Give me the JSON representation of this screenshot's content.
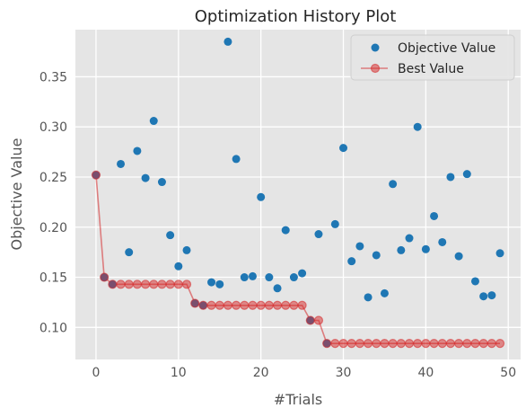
{
  "chart_data": {
    "type": "scatter",
    "title": "Optimization History Plot",
    "xlabel": "#Trials",
    "ylabel": "Objective Value",
    "xlim": [
      -2.5,
      51.5
    ],
    "ylim": [
      0.068,
      0.397
    ],
    "xticks": [
      0,
      10,
      20,
      30,
      40,
      50
    ],
    "yticks": [
      0.1,
      0.15,
      0.2,
      0.25,
      0.3,
      0.35
    ],
    "grid": true,
    "legend_position": "top-right",
    "colors": {
      "background": "#e5e5e5",
      "grid": "#ffffff",
      "objective": "#1f77b4",
      "best": "#d62728"
    },
    "series": [
      {
        "name": "Objective Value",
        "kind": "scatter",
        "x": [
          0,
          1,
          2,
          3,
          4,
          5,
          6,
          7,
          8,
          9,
          10,
          11,
          12,
          13,
          14,
          15,
          16,
          17,
          18,
          19,
          20,
          21,
          22,
          23,
          24,
          25,
          26,
          27,
          28,
          29,
          30,
          31,
          32,
          33,
          34,
          35,
          36,
          37,
          38,
          39,
          40,
          41,
          42,
          43,
          44,
          45,
          46,
          47,
          48,
          49
        ],
        "y": [
          0.252,
          0.15,
          0.143,
          0.263,
          0.175,
          0.276,
          0.249,
          0.306,
          0.245,
          0.192,
          0.161,
          0.177,
          0.124,
          0.122,
          0.145,
          0.143,
          0.385,
          0.268,
          0.15,
          0.151,
          0.23,
          0.15,
          0.139,
          0.197,
          0.15,
          0.154,
          0.107,
          0.193,
          0.084,
          0.203,
          0.279,
          0.166,
          0.181,
          0.13,
          0.172,
          0.134,
          0.243,
          0.177,
          0.189,
          0.3,
          0.178,
          0.211,
          0.185,
          0.25,
          0.171,
          0.253,
          0.146,
          0.131,
          0.132,
          0.174
        ]
      },
      {
        "name": "Best Value",
        "kind": "line-markers",
        "x": [
          0,
          1,
          2,
          3,
          4,
          5,
          6,
          7,
          8,
          9,
          10,
          11,
          12,
          13,
          14,
          15,
          16,
          17,
          18,
          19,
          20,
          21,
          22,
          23,
          24,
          25,
          26,
          27,
          28,
          29,
          30,
          31,
          32,
          33,
          34,
          35,
          36,
          37,
          38,
          39,
          40,
          41,
          42,
          43,
          44,
          45,
          46,
          47,
          48,
          49
        ],
        "y": [
          0.252,
          0.15,
          0.143,
          0.143,
          0.143,
          0.143,
          0.143,
          0.143,
          0.143,
          0.143,
          0.143,
          0.143,
          0.124,
          0.122,
          0.122,
          0.122,
          0.122,
          0.122,
          0.122,
          0.122,
          0.122,
          0.122,
          0.122,
          0.122,
          0.122,
          0.122,
          0.107,
          0.107,
          0.084,
          0.084,
          0.084,
          0.084,
          0.084,
          0.084,
          0.084,
          0.084,
          0.084,
          0.084,
          0.084,
          0.084,
          0.084,
          0.084,
          0.084,
          0.084,
          0.084,
          0.084,
          0.084,
          0.084,
          0.084,
          0.084
        ]
      }
    ]
  }
}
